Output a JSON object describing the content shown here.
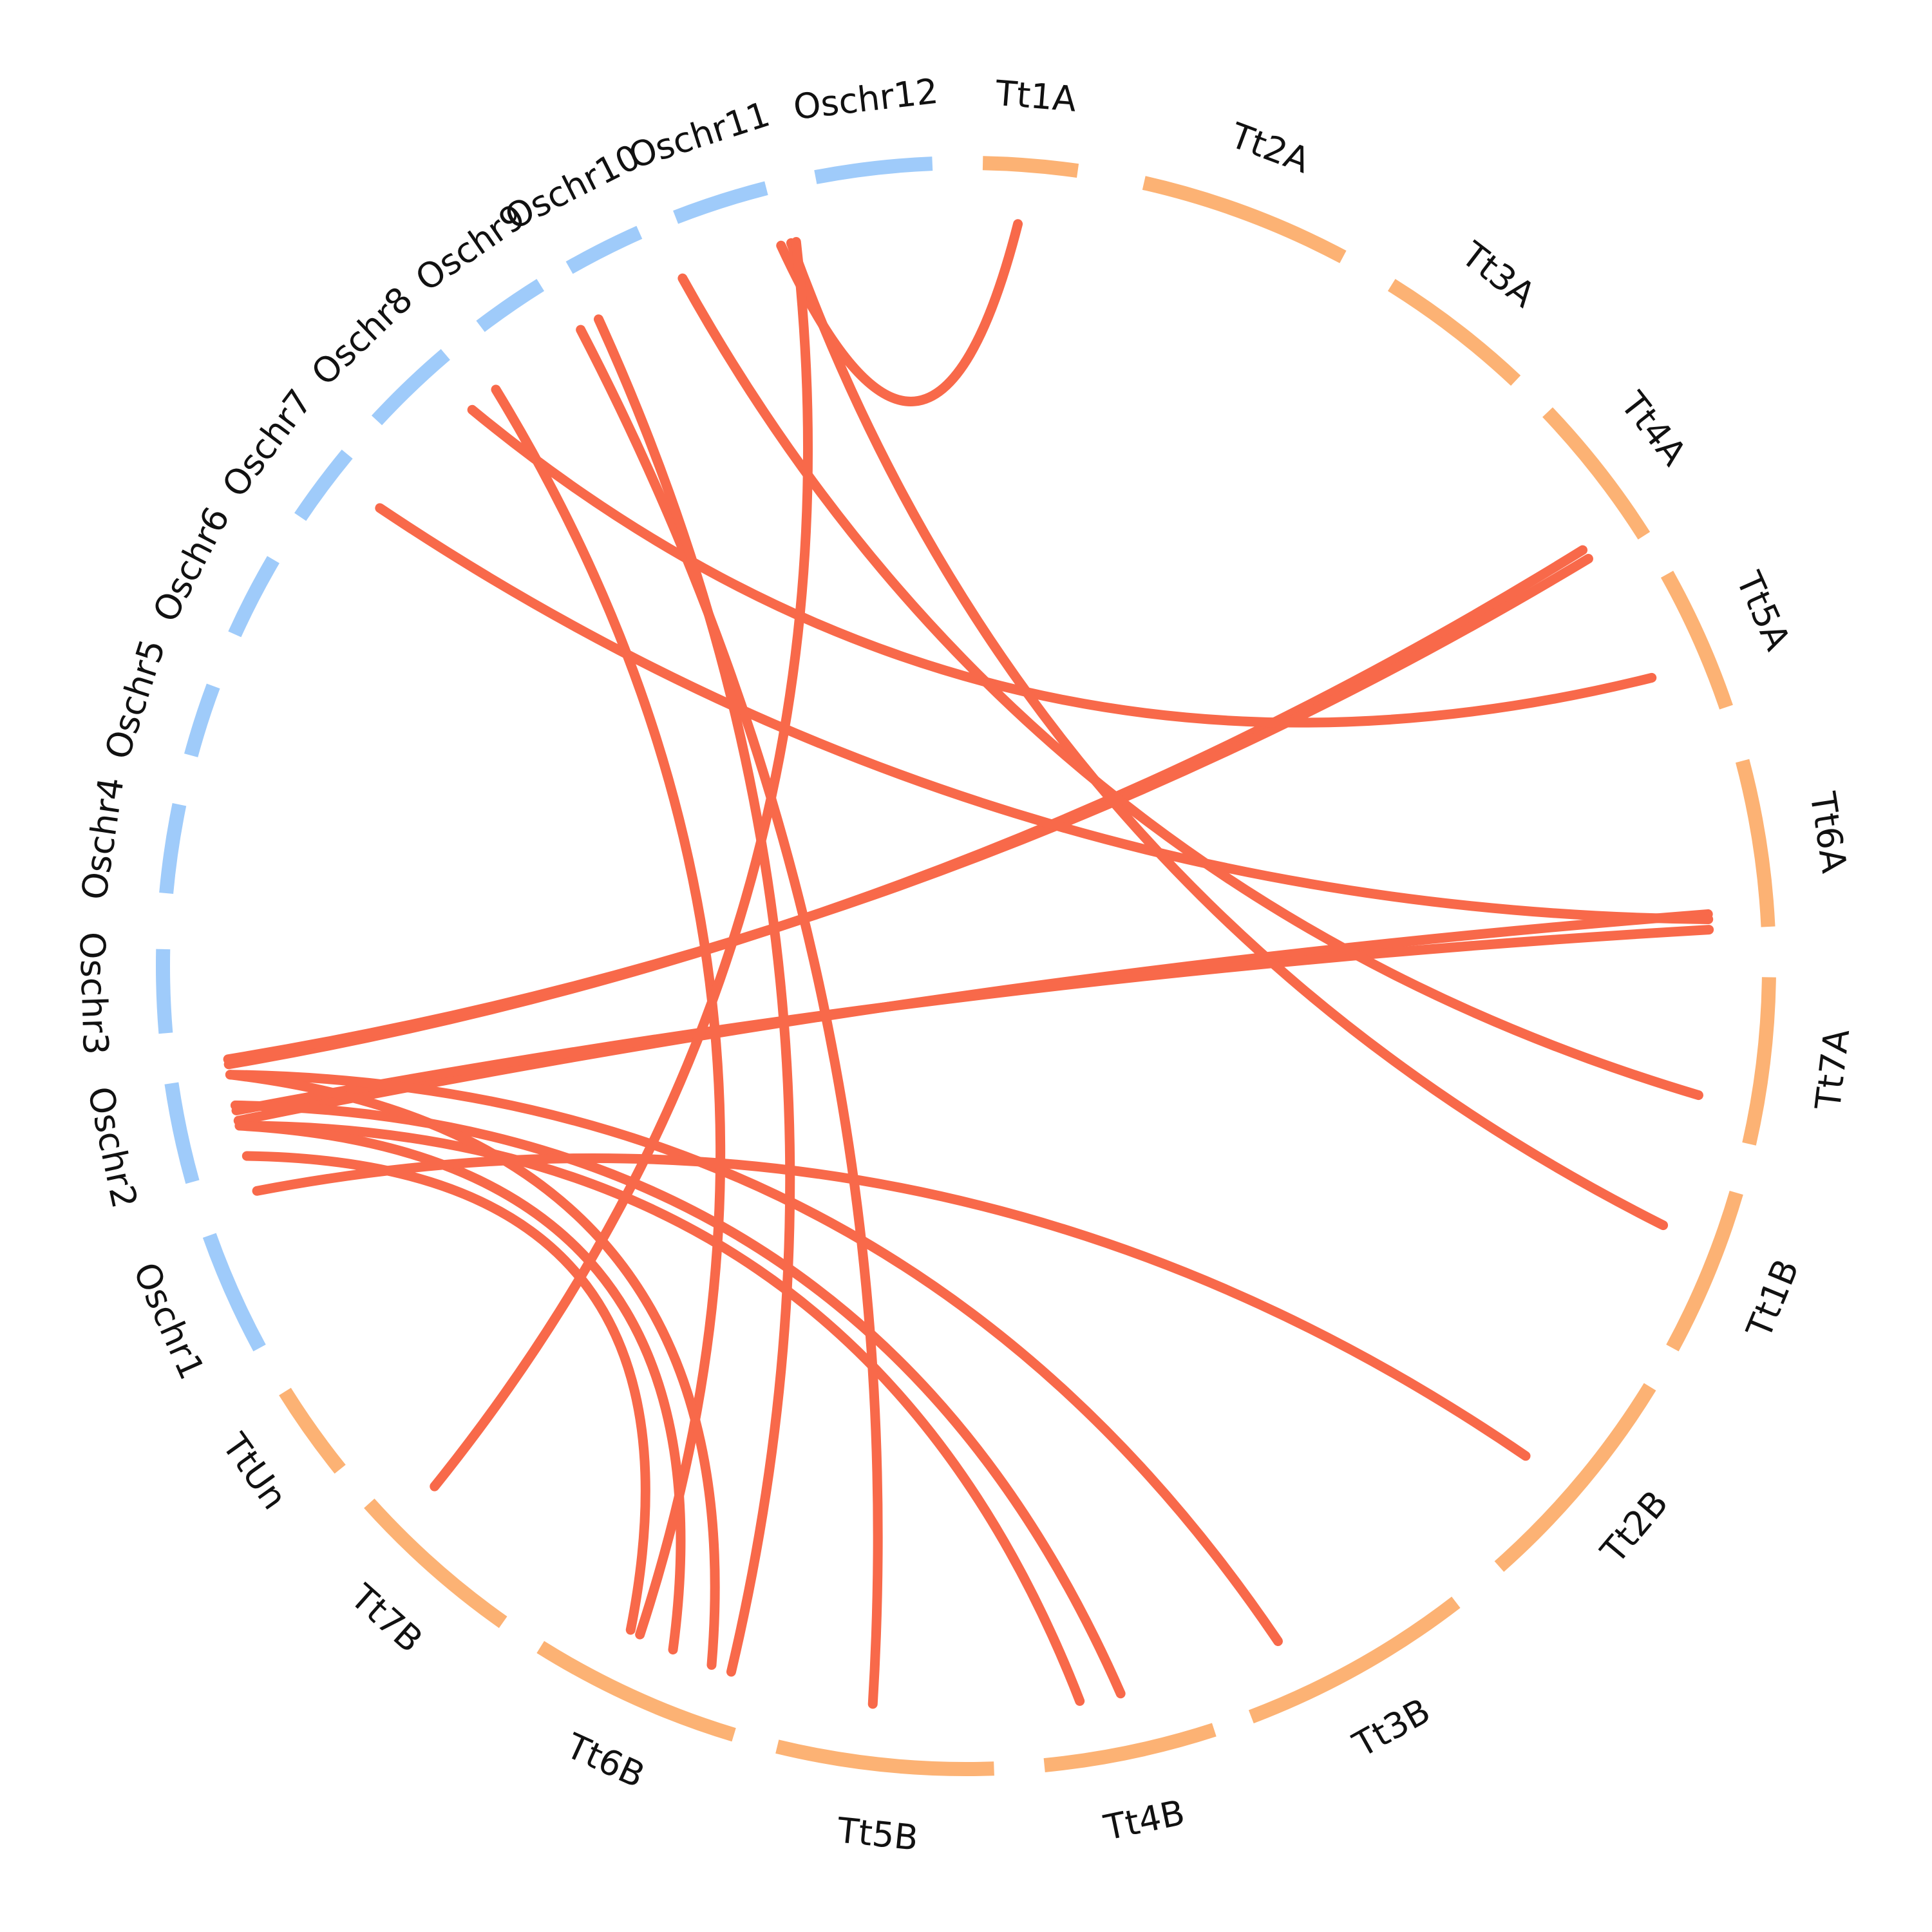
{
  "colors": {
    "oryza": "#9fcbfa",
    "triticum": "#fcb274",
    "link": "#f8694a",
    "label": "#111111"
  },
  "segments": [
    {
      "id": "Tt1A",
      "label": "Tt1A",
      "group": "triticum",
      "start": 1.5,
      "end": 10.0
    },
    {
      "id": "Tt2A",
      "label": "Tt2A",
      "group": "triticum",
      "start": 16.0,
      "end": 35.0
    },
    {
      "id": "Tt3A",
      "label": "Tt3A",
      "group": "triticum",
      "start": 40.0,
      "end": 54.0
    },
    {
      "id": "Tt4A",
      "label": "Tt4A",
      "group": "triticum",
      "start": 58.0,
      "end": 72.0
    },
    {
      "id": "Tt5A",
      "label": "Tt5A",
      "group": "triticum",
      "start": 76.0,
      "end": 89.0
    },
    {
      "id": "Tt6A",
      "label": "Tt6A",
      "group": "triticum",
      "start": 94.0,
      "end": 109.0
    },
    {
      "id": "Tt7A",
      "label": "Tt7A",
      "group": "triticum",
      "start": 113.5,
      "end": 128.5
    },
    {
      "id": "Tt1B",
      "label": "Tt1B",
      "group": "triticum",
      "start": 133.0,
      "end": 148.0
    },
    {
      "id": "Tt2B",
      "label": "Tt2B",
      "group": "triticum",
      "start": 152.0,
      "end": 173.0
    },
    {
      "id": "Tt3B",
      "label": "Tt3B",
      "group": "triticum",
      "start": 178.0,
      "end": 199.0
    },
    {
      "id": "Tt4B",
      "label": "Tt4B",
      "group": "triticum",
      "start": 202.5,
      "end": 218.0
    },
    {
      "id": "Tt5B",
      "label": "Tt5B",
      "group": "triticum",
      "start": 222.5,
      "end": 242.0
    },
    {
      "id": "Tt6B",
      "label": "Tt6B",
      "group": "triticum",
      "start": 246.0,
      "end": 265.0
    },
    {
      "id": "Tt7B",
      "label": "Tt7B",
      "group": "triticum",
      "start": 269.0,
      "end": 285.0
    },
    {
      "id": "TtUn",
      "label": "TtUn",
      "group": "triticum",
      "start": 289.0,
      "end": 297.5
    },
    {
      "id": "Oschr1",
      "label": "Oschr1",
      "group": "oryza",
      "start": 302.0,
      "end": 313.0
    },
    {
      "id": "Oschr2",
      "label": "Oschr2",
      "group": "oryza",
      "start": 318.0,
      "end": 327.0
    },
    {
      "id": "Oschr3",
      "label": "Oschr3",
      "group": "oryza",
      "start": 331.5,
      "end": 339.0
    },
    {
      "id": "Oschr4",
      "label": "Oschr4",
      "group": "oryza",
      "start": 344.0,
      "end": 352.0
    },
    {
      "id": "Oschr5",
      "label": "Oschr5",
      "group": "oryza",
      "start": 356.5,
      "end": 363.0
    },
    {
      "id": "Oschr6",
      "label": "Oschr6",
      "group": "oryza",
      "start": 368.0,
      "end": 375.5
    },
    {
      "id": "Oschr7",
      "label": "Oschr7",
      "group": "oryza",
      "start": 380.0,
      "end": 387.0
    },
    {
      "id": "Oschr8",
      "label": "Oschr8",
      "group": "oryza",
      "start": 391.0,
      "end": 399.5
    },
    {
      "id": "Oschr9",
      "label": "Oschr9",
      "group": "oryza",
      "start": 403.5,
      "end": 410.0
    },
    {
      "id": "Oschr10",
      "label": "Oschr10",
      "group": "oryza",
      "start": 413.0,
      "end": 420.0
    },
    {
      "id": "Oschr11",
      "label": "Oschr11",
      "group": "oryza",
      "start": 423.5,
      "end": 432.0
    },
    {
      "id": "Oschr12",
      "label": "Oschr12",
      "group": "oryza",
      "start": 436.5,
      "end": 447.0
    }
  ],
  "scale_total": 450,
  "links": [
    {
      "from": 5.0,
      "to": 432.0
    },
    {
      "from": 70.0,
      "to": 328.0
    },
    {
      "from": 71.0,
      "to": 328.5
    },
    {
      "from": 84.0,
      "to": 398.0
    },
    {
      "from": 107.5,
      "to": 322.5
    },
    {
      "from": 109.0,
      "to": 323.5
    },
    {
      "from": 108.0,
      "to": 385.0
    },
    {
      "from": 125.0,
      "to": 422.0
    },
    {
      "from": 138.0,
      "to": 433.0
    },
    {
      "from": 194.0,
      "to": 327.0
    },
    {
      "from": 210.0,
      "to": 324.0
    },
    {
      "from": 214.0,
      "to": 322.0
    },
    {
      "from": 234.0,
      "to": 411.0
    },
    {
      "from": 248.0,
      "to": 413.0
    },
    {
      "from": 254.0,
      "to": 322.0
    },
    {
      "from": 257.5,
      "to": 401.0
    },
    {
      "from": 258.5,
      "to": 319.0
    },
    {
      "from": 250.0,
      "to": 327.0
    },
    {
      "from": 282.0,
      "to": 433.5
    },
    {
      "from": 164.0,
      "to": 315.5
    }
  ]
}
